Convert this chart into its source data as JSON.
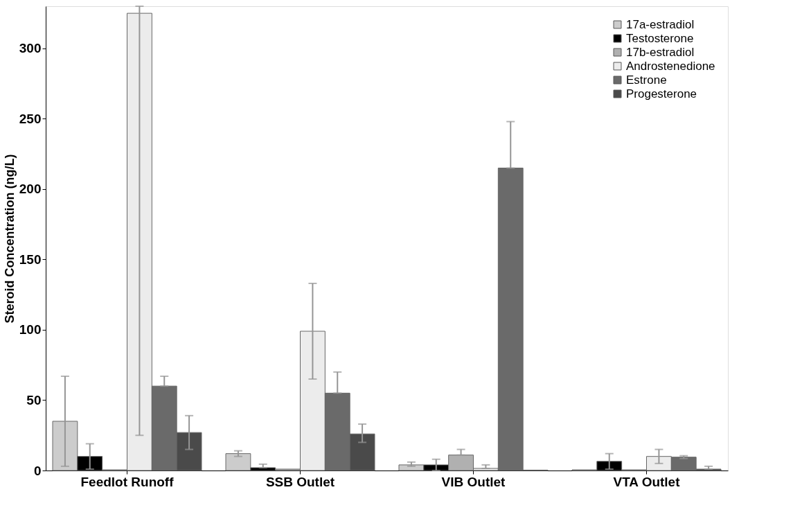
{
  "chart_data": {
    "type": "bar",
    "ylabel": "Steroid Concentration (ng/L)",
    "categories": [
      "Feedlot Runoff",
      "SSB Outlet",
      "VIB Outlet",
      "VTA Outlet"
    ],
    "series": [
      {
        "name": "17a-estradiol",
        "color": "#cccccc",
        "values": [
          35,
          12,
          4,
          0.5
        ],
        "errors": [
          [
            3,
            67
          ],
          [
            10,
            14
          ],
          [
            3,
            6
          ],
          null
        ]
      },
      {
        "name": "Testosterone",
        "color": "#000000",
        "values": [
          10,
          2,
          4,
          6.5
        ],
        "errors": [
          [
            1,
            19
          ],
          [
            2,
            4.5
          ],
          [
            0,
            8
          ],
          [
            1,
            12
          ]
        ]
      },
      {
        "name": "17b-estradiol",
        "color": "#b0b0b0",
        "values": [
          0.5,
          1,
          11,
          0.5
        ],
        "errors": [
          null,
          null,
          [
            11,
            15
          ],
          null
        ]
      },
      {
        "name": "Androstenedione",
        "color": "#ececec",
        "values": [
          325,
          99,
          1.5,
          10
        ],
        "errors": [
          [
            25,
            330
          ],
          [
            65,
            133
          ],
          [
            1.5,
            4
          ],
          [
            5,
            15
          ]
        ]
      },
      {
        "name": "Estrone",
        "color": "#6a6a6a",
        "values": [
          60,
          55,
          215,
          9.5
        ],
        "errors": [
          [
            60,
            67
          ],
          [
            55,
            70
          ],
          [
            215,
            248
          ],
          [
            8.5,
            10.5
          ]
        ]
      },
      {
        "name": "Progesterone",
        "color": "#4a4a4a",
        "values": [
          27,
          26,
          0.3,
          1
        ],
        "errors": [
          [
            15,
            39
          ],
          [
            20,
            33
          ],
          null,
          [
            1,
            3
          ]
        ]
      }
    ],
    "ylim": [
      0,
      330
    ],
    "yticks": [
      0,
      50,
      100,
      150,
      200,
      250,
      300
    ],
    "grid": false,
    "legend": "top right"
  }
}
